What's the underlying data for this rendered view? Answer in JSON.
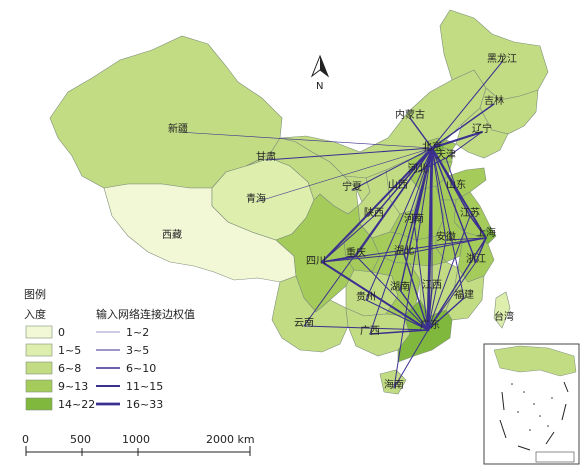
{
  "colors": {
    "class0": "#f2f8d6",
    "class1": "#ddeead",
    "class2": "#c2dc84",
    "class3": "#a5cc5b",
    "class4": "#7fb83c",
    "edge": "#3b2f8f",
    "background": "#ffffff"
  },
  "north_arrow": {
    "label": "N",
    "icon": "north-arrow-icon"
  },
  "legend": {
    "title": "图例",
    "indegree_title": "入度",
    "edge_title": "输入网络连接边权值",
    "indegree_classes": [
      {
        "label": "0",
        "color": "#f2f8d6"
      },
      {
        "label": "1~5",
        "color": "#ddeead"
      },
      {
        "label": "6~8",
        "color": "#c2dc84"
      },
      {
        "label": "9~13",
        "color": "#a5cc5b"
      },
      {
        "label": "14~22",
        "color": "#7fb83c"
      }
    ],
    "edge_classes": [
      {
        "label": "1~2",
        "width": 0.6
      },
      {
        "label": "3~5",
        "width": 1.0
      },
      {
        "label": "6~10",
        "width": 1.4
      },
      {
        "label": "11~15",
        "width": 2.0
      },
      {
        "label": "16~33",
        "width": 2.8
      }
    ]
  },
  "scalebar": {
    "ticks": [
      "0",
      "500",
      "1000",
      "2000 km"
    ]
  },
  "provinces": [
    {
      "id": "xinjiang",
      "label": "新疆",
      "class": 2
    },
    {
      "id": "xizang",
      "label": "西藏",
      "class": 0
    },
    {
      "id": "qinghai",
      "label": "青海",
      "class": 1
    },
    {
      "id": "gansu",
      "label": "甘肃",
      "class": 2
    },
    {
      "id": "neimenggu",
      "label": "内蒙古",
      "class": 2
    },
    {
      "id": "heilongjiang",
      "label": "黑龙江",
      "class": 2
    },
    {
      "id": "jilin",
      "label": "吉林",
      "class": 2
    },
    {
      "id": "liaoning",
      "label": "辽宁",
      "class": 2
    },
    {
      "id": "beijing",
      "label": "北京",
      "class": 4
    },
    {
      "id": "tianjin",
      "label": "天津",
      "class": 3
    },
    {
      "id": "hebei",
      "label": "河北",
      "class": 3
    },
    {
      "id": "shanxi",
      "label": "山西",
      "class": 2
    },
    {
      "id": "ningxia",
      "label": "宁夏",
      "class": 2
    },
    {
      "id": "shaanxi",
      "label": "陕西",
      "class": 2
    },
    {
      "id": "shandong",
      "label": "山东",
      "class": 3
    },
    {
      "id": "henan",
      "label": "河南",
      "class": 3
    },
    {
      "id": "jiangsu",
      "label": "江苏",
      "class": 3
    },
    {
      "id": "anhui",
      "label": "安徽",
      "class": 3
    },
    {
      "id": "shanghai",
      "label": "上海",
      "class": 4
    },
    {
      "id": "zhejiang",
      "label": "浙江",
      "class": 3
    },
    {
      "id": "hubei",
      "label": "湖北",
      "class": 3
    },
    {
      "id": "chongqing",
      "label": "重庆",
      "class": 3
    },
    {
      "id": "sichuan",
      "label": "四川",
      "class": 3
    },
    {
      "id": "guizhou",
      "label": "贵州",
      "class": 2
    },
    {
      "id": "yunnan",
      "label": "云南",
      "class": 2
    },
    {
      "id": "hunan",
      "label": "湖南",
      "class": 3
    },
    {
      "id": "jiangxi",
      "label": "江西",
      "class": 2
    },
    {
      "id": "fujian",
      "label": "福建",
      "class": 2
    },
    {
      "id": "guangxi",
      "label": "广西",
      "class": 2
    },
    {
      "id": "guangdong",
      "label": "广东",
      "class": 4
    },
    {
      "id": "hainan",
      "label": "海南",
      "class": 2
    },
    {
      "id": "taiwan",
      "label": "台湾",
      "class": 1
    }
  ],
  "edges": [
    [
      "beijing",
      "xinjiang",
      1
    ],
    [
      "beijing",
      "heilongjiang",
      2
    ],
    [
      "beijing",
      "jilin",
      3
    ],
    [
      "beijing",
      "liaoning",
      4
    ],
    [
      "beijing",
      "neimenggu",
      3
    ],
    [
      "beijing",
      "gansu",
      2
    ],
    [
      "beijing",
      "qinghai",
      1
    ],
    [
      "beijing",
      "ningxia",
      2
    ],
    [
      "beijing",
      "shaanxi",
      3
    ],
    [
      "beijing",
      "shanxi",
      3
    ],
    [
      "beijing",
      "shandong",
      3
    ],
    [
      "beijing",
      "henan",
      3
    ],
    [
      "beijing",
      "jiangsu",
      3
    ],
    [
      "beijing",
      "anhui",
      2
    ],
    [
      "beijing",
      "shanghai",
      4
    ],
    [
      "beijing",
      "zhejiang",
      3
    ],
    [
      "beijing",
      "hubei",
      3
    ],
    [
      "beijing",
      "hunan",
      3
    ],
    [
      "beijing",
      "jiangxi",
      2
    ],
    [
      "beijing",
      "fujian",
      2
    ],
    [
      "beijing",
      "guangdong",
      5
    ],
    [
      "beijing",
      "guangxi",
      2
    ],
    [
      "beijing",
      "guizhou",
      2
    ],
    [
      "beijing",
      "yunnan",
      2
    ],
    [
      "beijing",
      "sichuan",
      4
    ],
    [
      "beijing",
      "chongqing",
      3
    ],
    [
      "beijing",
      "hainan",
      2
    ],
    [
      "guangdong",
      "sichuan",
      4
    ],
    [
      "guangdong",
      "hunan",
      3
    ],
    [
      "guangdong",
      "guangxi",
      3
    ],
    [
      "guangdong",
      "guizhou",
      2
    ],
    [
      "guangdong",
      "yunnan",
      2
    ],
    [
      "guangdong",
      "jiangxi",
      3
    ],
    [
      "guangdong",
      "fujian",
      3
    ],
    [
      "guangdong",
      "hubei",
      3
    ],
    [
      "guangdong",
      "henan",
      2
    ],
    [
      "guangdong",
      "shanghai",
      3
    ],
    [
      "guangdong",
      "zhejiang",
      2
    ],
    [
      "guangdong",
      "chongqing",
      2
    ],
    [
      "guangdong",
      "hainan",
      2
    ],
    [
      "guangdong",
      "anhui",
      2
    ],
    [
      "guangdong",
      "jiangsu",
      2
    ],
    [
      "shanghai",
      "jiangsu",
      3
    ],
    [
      "shanghai",
      "zhejiang",
      3
    ],
    [
      "shanghai",
      "anhui",
      2
    ],
    [
      "shanghai",
      "sichuan",
      2
    ],
    [
      "shanghai",
      "hubei",
      2
    ],
    [
      "shanghai",
      "shandong",
      2
    ],
    [
      "sichuan",
      "chongqing",
      3
    ],
    [
      "sichuan",
      "hubei",
      2
    ],
    [
      "sichuan",
      "shaanxi",
      2
    ],
    [
      "tianjin",
      "hebei",
      2
    ],
    [
      "tianjin",
      "shandong",
      2
    ],
    [
      "tianjin",
      "liaoning",
      2
    ]
  ]
}
